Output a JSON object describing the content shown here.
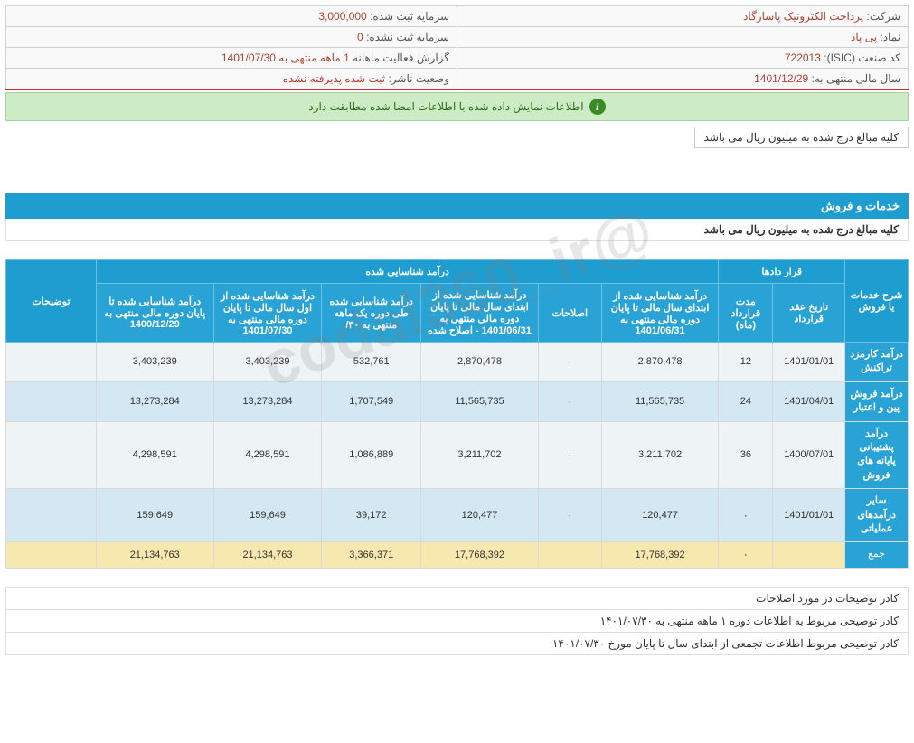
{
  "info": {
    "company_label": "شرکت:",
    "company_value": "پرداخت الکترونیک پاسارگاد",
    "capital_reg_label": "سرمایه ثبت شده:",
    "capital_reg_value": "3,000,000",
    "symbol_label": "نماد:",
    "symbol_value": "پی پاد",
    "capital_unreg_label": "سرمایه ثبت نشده:",
    "capital_unreg_value": "0",
    "isic_label": "کد صنعت (ISIC):",
    "isic_value": "722013",
    "report_label": "گزارش فعالیت ماهانه",
    "report_value": "1 ماهه منتهی به 1401/07/30",
    "fiscal_label": "سال مالی منتهی به:",
    "fiscal_value": "1401/12/29",
    "publisher_label": "وضعیت ناشر:",
    "publisher_value": "ثبت شده پذیرفته نشده"
  },
  "alert_text": "اطلاعات نمایش داده شده با اطلاعات امضا شده مطابقت دارد",
  "note_text": "کلیه مبالغ درج شده به میلیون ریال می باشد",
  "section": {
    "title": "خدمات و فروش",
    "subtitle": "کلیه مبالغ درج شده به میلیون ریال می باشد"
  },
  "headers": {
    "row_title": "شرح خدمات یا فروش",
    "contracts": "قرار دادها",
    "recognized": "درآمد شناسایی شده",
    "notes": "توضیحات",
    "c_date": "تاریخ عقد قرارداد",
    "c_duration": "مدت قرارداد (ماه)",
    "rev_begin_to_6_31": "درآمد شناسایی شده از ابتدای سال مالی تا پایان دوره مالی منتهی به 1401/06/31",
    "corrections": "اصلاحات",
    "rev_begin_to_6_31_corr": "درآمد شناسایی شده از ابتدای سال مالی تا پایان دوره مالی منتهی به 1401/06/31 - اصلاح شده",
    "rev_one_month": "درآمد شناسایی شده طی دوره یک ماهه منتهی به ۳۰/",
    "rev_from_year_start": "درآمد شناسایی شده از اول سال مالی تا پایان دوره مالی منتهی به 1401/07/30",
    "rev_to_end_prev": "درآمد شناسایی شده تا پایان دوره مالی منتهی به 1400/12/29"
  },
  "rows": [
    {
      "name": "درآمد کارمزد تراکنش",
      "c_date": "1401/01/01",
      "c_dur": "12",
      "v1": "2,870,478",
      "corr": "۰",
      "v2": "2,870,478",
      "v3": "532,761",
      "v4": "3,403,239",
      "v5": "3,403,239",
      "notes": ""
    },
    {
      "name": "درآمد فروش پین و اعتبار",
      "c_date": "1401/04/01",
      "c_dur": "24",
      "v1": "11,565,735",
      "corr": "۰",
      "v2": "11,565,735",
      "v3": "1,707,549",
      "v4": "13,273,284",
      "v5": "13,273,284",
      "notes": ""
    },
    {
      "name": "درآمد پشتیبانی پایانه های فروش",
      "c_date": "1400/07/01",
      "c_dur": "36",
      "v1": "3,211,702",
      "corr": "۰",
      "v2": "3,211,702",
      "v3": "1,086,889",
      "v4": "4,298,591",
      "v5": "4,298,591",
      "notes": ""
    },
    {
      "name": "سایر درآمدهای عملیاتی",
      "c_date": "1401/01/01",
      "c_dur": "۰",
      "v1": "120,477",
      "corr": "۰",
      "v2": "120,477",
      "v3": "39,172",
      "v4": "159,649",
      "v5": "159,649",
      "notes": ""
    }
  ],
  "total": {
    "name": "جمع",
    "c_date": "",
    "c_dur": "۰",
    "v1": "17,768,392",
    "corr": "",
    "v2": "17,768,392",
    "v3": "3,366,371",
    "v4": "21,134,763",
    "v5": "21,134,763",
    "notes": ""
  },
  "footer": {
    "l1": "کادر توضیحات در مورد اصلاحات",
    "l2": "کادر توضیحی مربوط به اطلاعات دوره ۱ ماهه منتهی به ۱۴۰۱/۰۷/۳۰",
    "l3": "کادر توضیحی مربوط اطلاعات تجمعی از ابتدای سال تا پایان مورخ ۱۴۰۱/۰۷/۳۰"
  },
  "watermark": "@codal360_ir",
  "colors": {
    "header_bg": "#29a3d5",
    "group_bg": "#1e9ed0",
    "alt_row1": "#eef4f6",
    "alt_row2": "#d3e8f2",
    "total_bg": "#f7e8b0",
    "value_color": "#b04030",
    "alert_bg": "#cdecc6"
  }
}
